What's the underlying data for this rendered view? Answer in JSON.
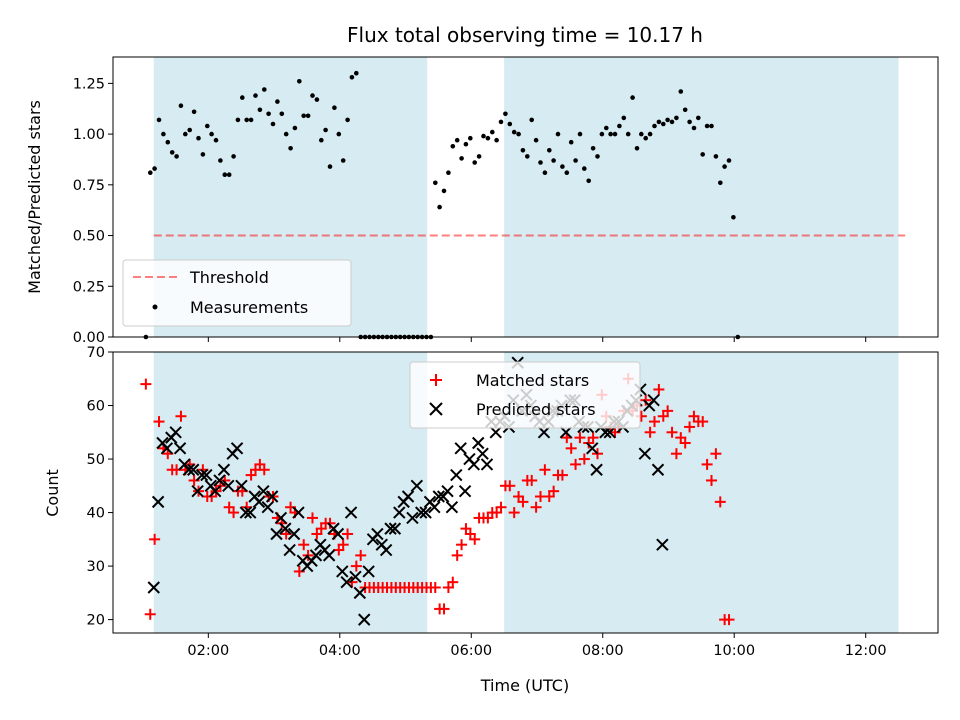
{
  "chart_data": {
    "type": "scatter",
    "title": "Flux total observing time = 10.17 h",
    "xlabel": "Time (UTC)",
    "colors": {
      "shade": "#add8e6",
      "threshold": "#ff0000",
      "matched": "#ff0000",
      "predicted": "#000000",
      "measurements": "#000000"
    },
    "x_range_hours": [
      0.55,
      13.1
    ],
    "x_ticks": [
      "02:00",
      "04:00",
      "06:00",
      "08:00",
      "10:00",
      "12:00"
    ],
    "shaded_intervals_hours": [
      [
        1.17,
        5.33
      ],
      [
        6.5,
        12.5
      ]
    ],
    "top": {
      "ylabel": "Matched/Predicted stars",
      "ylim": [
        0,
        1.38
      ],
      "yticks": [
        "0.00",
        "0.25",
        "0.50",
        "0.75",
        "1.00",
        "1.25"
      ],
      "threshold": 0.5,
      "threshold_x_hours": [
        1.17,
        12.6
      ],
      "legend": [
        "Threshold",
        "Measurements"
      ],
      "legend_position": "lower-left",
      "series_x_start_hours": 1.05,
      "series_x_step_hours": 0.0667,
      "ratio": [
        0,
        0.81,
        0.83,
        1.07,
        1.0,
        0.96,
        0.91,
        0.89,
        1.14,
        1.0,
        1.02,
        1.11,
        0.98,
        0.9,
        1.04,
        1.0,
        0.97,
        0.87,
        0.8,
        0.8,
        0.89,
        1.07,
        1.18,
        1.07,
        1.07,
        1.19,
        1.12,
        1.22,
        1.1,
        1.05,
        1.16,
        1.1,
        1.0,
        0.93,
        1.03,
        1.26,
        1.09,
        1.09,
        1.19,
        1.17,
        0.97,
        1.02,
        0.84,
        1.13,
        1.0,
        0.87,
        1.07,
        1.28,
        1.3,
        0,
        0,
        0,
        0,
        0,
        0,
        0,
        0,
        0,
        0,
        0,
        0,
        0,
        0,
        0,
        0,
        0,
        0.76,
        0.64,
        0.72,
        0.81,
        0.94,
        0.97,
        0.88,
        0.95,
        0.98,
        0.86,
        0.89,
        0.99,
        0.98,
        1.01,
        0.97,
        1.06,
        1.1,
        1.05,
        1.01,
        1.0,
        0.92,
        0.89,
        1.07,
        0.97,
        0.86,
        0.81,
        0.92,
        0.87,
        1.0,
        0.84,
        0.81,
        0.96,
        0.87,
        1.0,
        0.83,
        0.77,
        0.93,
        0.89,
        1.0,
        1.03,
        1.0,
        1.0,
        1.04,
        1.08,
        1.0,
        1.18,
        0.93,
        1.0,
        0.98,
        1.0,
        1.04,
        1.06,
        1.05,
        1.07,
        1.06,
        1.08,
        1.21,
        1.12,
        1.06,
        1.03,
        1.08,
        0.9,
        1.04,
        1.04,
        0.89,
        0.76,
        0.84,
        0.87,
        0.59,
        0
      ]
    },
    "bottom": {
      "ylabel": "Count",
      "ylim": [
        17.5,
        70
      ],
      "yticks": [
        "20",
        "30",
        "40",
        "50",
        "60",
        "70"
      ],
      "legend_position": "upper-center",
      "series": [
        {
          "name": "Matched stars",
          "marker": "+",
          "x_start_hours": 1.05,
          "x_step_hours": 0.0667,
          "values": [
            64,
            21,
            35,
            57,
            52,
            51,
            48,
            48,
            58,
            48,
            49,
            46,
            44,
            48,
            43,
            43,
            44,
            45,
            46,
            41,
            40,
            44,
            44,
            41,
            47,
            48,
            49,
            48,
            43,
            43,
            39,
            38,
            36,
            41,
            40,
            29,
            34,
            32,
            39,
            36,
            37,
            38,
            38,
            36,
            33,
            34,
            36,
            27,
            30,
            32,
            26,
            26,
            26,
            26,
            26,
            26,
            26,
            26,
            26,
            26,
            26,
            26,
            26,
            26,
            26,
            26,
            26,
            22,
            22,
            26,
            27,
            32,
            34,
            37,
            36,
            35,
            39,
            39,
            39,
            40,
            40,
            41,
            45,
            45,
            40,
            43,
            42,
            46,
            46,
            41,
            43,
            48,
            43,
            44,
            47,
            47,
            54,
            52,
            49,
            54,
            50,
            53,
            54,
            51,
            62,
            58,
            56,
            55,
            56,
            59,
            65,
            59,
            60,
            58,
            61,
            55,
            57,
            63,
            58,
            59,
            55,
            51,
            54,
            53,
            56,
            58,
            57,
            57,
            49,
            46,
            51,
            42,
            20,
            20
          ]
        },
        {
          "name": "Predicted stars",
          "marker": "x",
          "x_start_hours": 1.17,
          "x_step_hours": 0.0667,
          "values": [
            26,
            42,
            53,
            52,
            54,
            55,
            52,
            49,
            48,
            48,
            44,
            47,
            47,
            45,
            44,
            46,
            48,
            45,
            51,
            52,
            45,
            40,
            40,
            43,
            42,
            44,
            41,
            43,
            36,
            39,
            37,
            33,
            36,
            40,
            31,
            30,
            31,
            32,
            34,
            33,
            32,
            37,
            36,
            29,
            27,
            40,
            28,
            25,
            20,
            29,
            35,
            36,
            34,
            33,
            37,
            37,
            40,
            42,
            43,
            39,
            45,
            40,
            40,
            42,
            41,
            43,
            43,
            44,
            41,
            47,
            52,
            44,
            50,
            49,
            53,
            51,
            49,
            57,
            55,
            57,
            58,
            56,
            61,
            68,
            59,
            62,
            60,
            58,
            57,
            55,
            57,
            59,
            59,
            60,
            55,
            61,
            61,
            57,
            56,
            56,
            52,
            48,
            56,
            55,
            55,
            57,
            57,
            56,
            59,
            60,
            61,
            63,
            51,
            60,
            61,
            48,
            34
          ]
        }
      ]
    }
  }
}
